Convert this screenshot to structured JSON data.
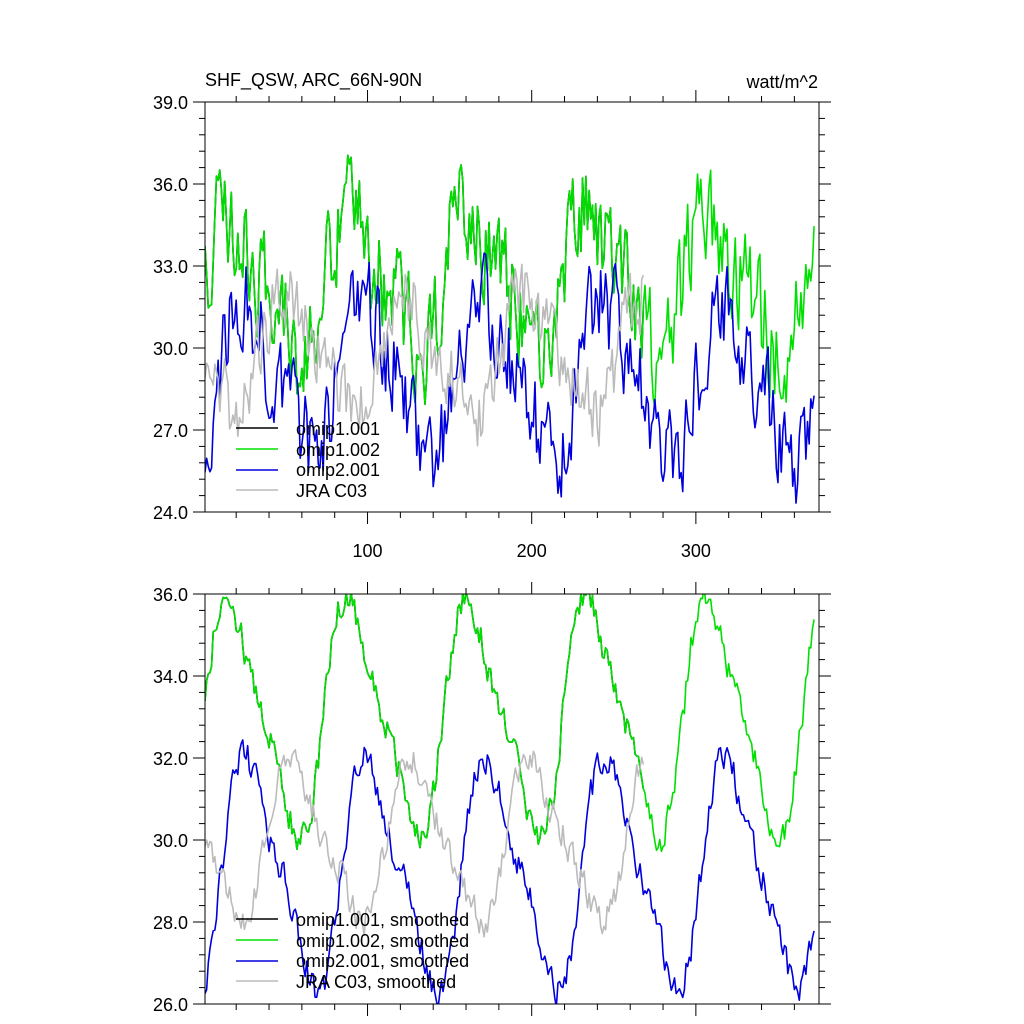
{
  "chart_data": [
    {
      "type": "line",
      "title": "SHF_QSW, ARC_66N-90N",
      "units": "watt/m^2",
      "xlim": [
        1,
        375
      ],
      "ylim": [
        24,
        39
      ],
      "yticks": [
        "24.0",
        "27.0",
        "30.0",
        "33.0",
        "36.0",
        "39.0"
      ],
      "xticks": [
        "100",
        "200",
        "300"
      ],
      "xtick_values": [
        100,
        200,
        300
      ],
      "legend_position": "bottom-left",
      "series": [
        {
          "name": "omip1.001",
          "color": "#000000",
          "length": 268,
          "mean": 32.5,
          "amplitude": 2.3,
          "noise": 1.8,
          "phase": 0.0,
          "seed": 11
        },
        {
          "name": "omip1.002",
          "color": "#00e000",
          "length": 372,
          "mean": 32.5,
          "amplitude": 2.3,
          "noise": 1.8,
          "phase": 0.0,
          "seed": 11
        },
        {
          "name": "omip2.001",
          "color": "#0000dd",
          "length": 372,
          "mean": 28.9,
          "amplitude": 2.6,
          "noise": 1.6,
          "phase": -9.0,
          "seed": 23
        },
        {
          "name": "JRA C03",
          "color": "#bbbbbb",
          "length": 268,
          "mean": 29.8,
          "amplitude": 1.9,
          "noise": 1.2,
          "phase": -34.0,
          "seed": 37
        }
      ]
    },
    {
      "type": "line",
      "title": "",
      "units": "",
      "xlim": [
        1,
        375
      ],
      "ylim": [
        26,
        36
      ],
      "yticks": [
        "26.0",
        "28.0",
        "30.0",
        "32.0",
        "34.0",
        "36.0"
      ],
      "xticks": [],
      "xtick_values": [
        100,
        200,
        300
      ],
      "legend_position": "bottom-left",
      "series": [
        {
          "name": "omip1.001, smoothed",
          "color": "#000000",
          "length": 268,
          "mean": 33.0,
          "amplitude": 2.7,
          "noise": 0.35,
          "phase": 0.0,
          "seed": 5
        },
        {
          "name": "omip1.002, smoothed",
          "color": "#00e000",
          "length": 372,
          "mean": 33.0,
          "amplitude": 2.7,
          "noise": 0.35,
          "phase": 0.0,
          "seed": 5
        },
        {
          "name": "omip2.001, smoothed",
          "color": "#0000dd",
          "length": 372,
          "mean": 29.2,
          "amplitude": 2.6,
          "noise": 0.35,
          "phase": -11.0,
          "seed": 9
        },
        {
          "name": "JRA C03, smoothed",
          "color": "#bbbbbb",
          "length": 268,
          "mean": 30.0,
          "amplitude": 1.8,
          "noise": 0.35,
          "phase": -38.0,
          "seed": 15
        }
      ]
    }
  ]
}
